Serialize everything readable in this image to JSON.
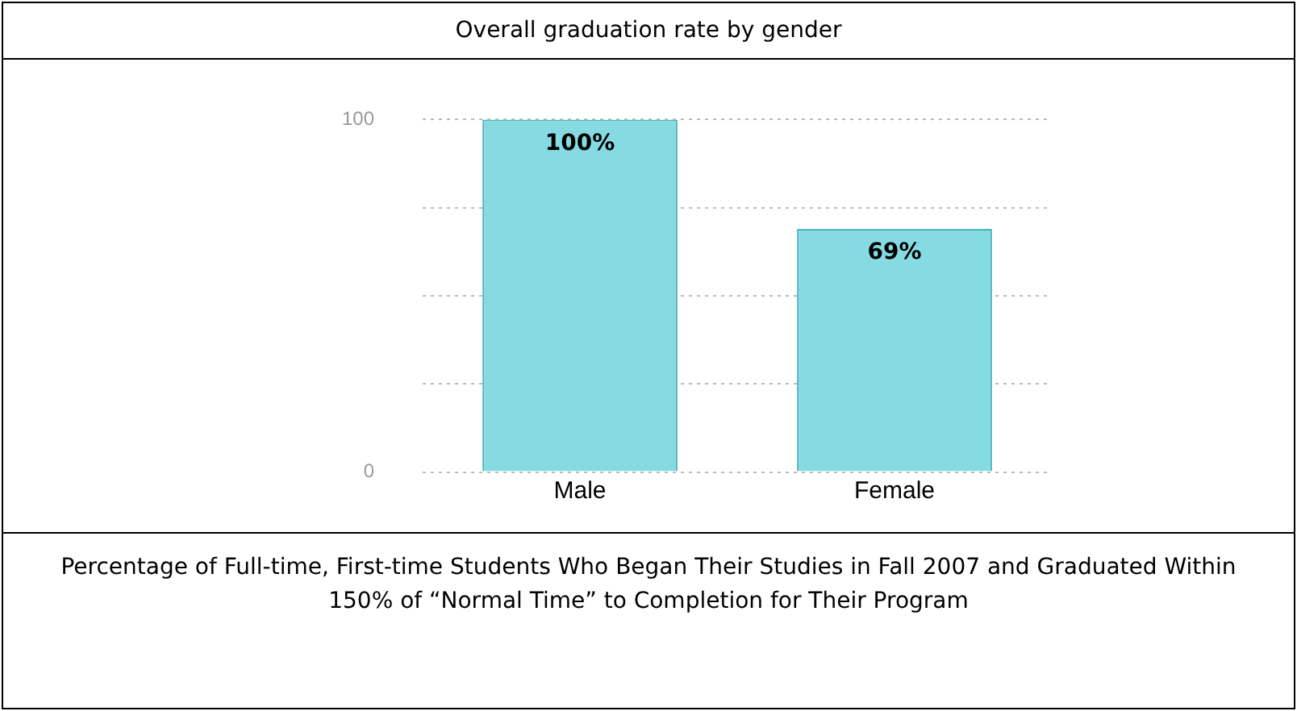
{
  "chart_data": {
    "type": "bar",
    "title": "Overall graduation rate by gender",
    "categories": [
      "Male",
      "Female"
    ],
    "values": [
      100,
      69
    ],
    "value_labels": [
      "100%",
      "69%"
    ],
    "color": "#86dbe3",
    "ylim": [
      0,
      100
    ],
    "yticks": [
      0,
      {
        "value": 25,
        "label": null
      },
      {
        "value": 50,
        "label": null
      },
      {
        "value": 75,
        "label": null
      },
      100
    ],
    "grid": "y",
    "legend": false,
    "annotations": [
      "Percentage of Full-time, First-time Students Who Began Their Studies in Fall 2007 and Graduated Within 150% of “Normal Time” to Completion for Their Program"
    ]
  }
}
